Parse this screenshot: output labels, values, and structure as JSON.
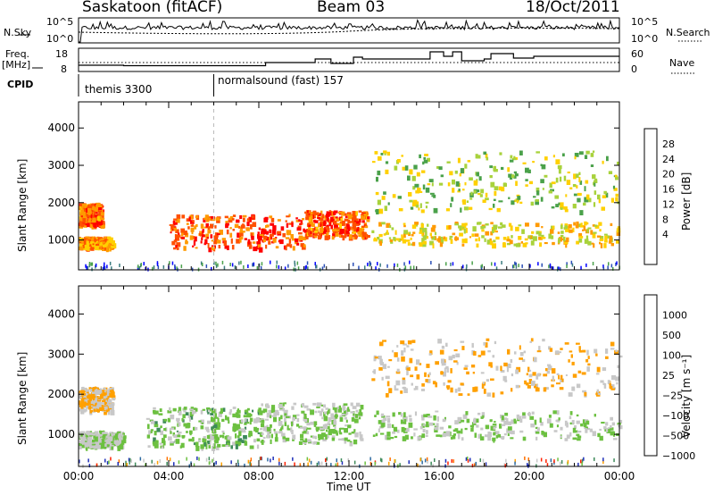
{
  "header": {
    "station": "Saskatoon (fitACF)",
    "beam": "Beam 03",
    "date": "18/Oct/2011"
  },
  "strip1": {
    "left_label": "N.Sky",
    "right_label": "N.Search",
    "left_ticks": [
      "10^5",
      "10^0"
    ],
    "right_ticks": [
      "10^5",
      "10^0"
    ]
  },
  "strip2": {
    "left_label_line1": "Freq.",
    "left_label_line2": "[MHz]",
    "right_label": "Nave",
    "left_ticks": [
      "18",
      "8"
    ],
    "right_ticks": [
      "60",
      "0"
    ]
  },
  "cpid": {
    "label": "CPID",
    "segments": [
      {
        "start": "00:00",
        "name": "themis 3300"
      },
      {
        "start": "06:00",
        "name": "normalsound (fast) 157"
      }
    ]
  },
  "chart_data": [
    {
      "type": "heatmap",
      "name": "power",
      "ylabel": "Slant Range [km]",
      "yticks": [
        1000,
        2000,
        3000,
        4000
      ],
      "ylim": [
        200,
        4700
      ],
      "xlim": [
        "00:00",
        "00:00 (+1 day)"
      ],
      "colorbar_label": "Power [dB]",
      "colorbar_ticks": [
        "28",
        "24",
        "20",
        "16",
        "12",
        "8",
        "4"
      ],
      "colors": [
        "#0000ff",
        "#2b4fb5",
        "#3c7d80",
        "#4aa14a",
        "#a8d23c",
        "#ffd000",
        "#ff9a00",
        "#ff5000",
        "#ff0000"
      ],
      "approx_regions": [
        {
          "time_hr": [
            0.0,
            1.5
          ],
          "range_km": [
            800,
            1100
          ],
          "value_db": 24
        },
        {
          "time_hr": [
            0.0,
            1.0
          ],
          "range_km": [
            1400,
            2000
          ],
          "value_db": 27
        },
        {
          "time_hr": [
            4.0,
            10.0
          ],
          "range_km": [
            800,
            1700
          ],
          "value_db": 28
        },
        {
          "time_hr": [
            10.0,
            12.8
          ],
          "range_km": [
            1100,
            1800
          ],
          "value_db": 27
        },
        {
          "time_hr": [
            13.0,
            24.0
          ],
          "range_km": [
            900,
            1500
          ],
          "value_db": 20
        },
        {
          "time_hr": [
            13.0,
            24.0
          ],
          "range_km": [
            1800,
            3400
          ],
          "value_db": 16
        }
      ]
    },
    {
      "type": "heatmap",
      "name": "velocity",
      "ylabel": "Slant Range [km]",
      "yticks": [
        1000,
        2000,
        3000,
        4000
      ],
      "ylim": [
        200,
        4700
      ],
      "xlim": [
        "00:00",
        "00:00 (+1 day)"
      ],
      "xlabel": "Time UT",
      "xticks": [
        "00:00",
        "04:00",
        "08:00",
        "12:00",
        "16:00",
        "20:00",
        "00:00"
      ],
      "colorbar_label": "Velocity [m s⁻¹]",
      "colorbar_ticks": [
        "1000",
        "500",
        "100",
        "25",
        "−25",
        "−100",
        "−500",
        "−1000"
      ],
      "colors": [
        "#1e2fb8",
        "#2d6aa0",
        "#3e8a5a",
        "#6cc040",
        "#c8c8c8",
        "#ffa000",
        "#ff7000",
        "#ff2000"
      ],
      "approx_regions": [
        {
          "time_hr": [
            0.0,
            2.0
          ],
          "range_km": [
            700,
            1100
          ],
          "value_ms": 0
        },
        {
          "time_hr": [
            0.0,
            1.5
          ],
          "range_km": [
            1600,
            2200
          ],
          "value_ms": -300
        },
        {
          "time_hr": [
            3.0,
            8.0
          ],
          "range_km": [
            700,
            1700
          ],
          "value_ms": 100
        },
        {
          "time_hr": [
            8.0,
            12.5
          ],
          "range_km": [
            800,
            1800
          ],
          "value_ms": 0
        },
        {
          "time_hr": [
            13.0,
            24.0
          ],
          "range_km": [
            900,
            1600
          ],
          "value_ms": 0
        },
        {
          "time_hr": [
            13.0,
            24.0
          ],
          "range_km": [
            2000,
            3400
          ],
          "value_ms": -300
        }
      ]
    }
  ]
}
